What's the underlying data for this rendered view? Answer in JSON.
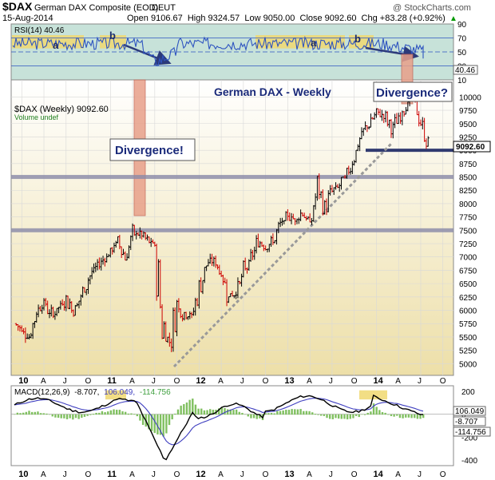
{
  "header": {
    "symbol": "$DAX",
    "name": "German DAX Composite (EOD)",
    "exchange": "DEUT",
    "date": "15-Aug-2014",
    "ohlc_text": "Open 9106.67  High 9324.57  Low 9050.00  Close 9092.60  Chg +83.28 (+0.92%)",
    "chg_arrow": "▲",
    "watermark": "@ StockCharts.com"
  },
  "colors": {
    "rsi_bg": "#c7e2d9",
    "price_bg_top": "#ffffff",
    "price_bg_bottom": "#eddfa8",
    "price_up": "#000000",
    "price_down": "#cc0000",
    "rsi_line": "#2e54c0",
    "hband": "#8a8aa8",
    "annotation_arrow": "#2c3a7a",
    "divergence_bar": "#e8a08a",
    "highlight": "#f0d870",
    "macd_line": "#000000",
    "signal_line": "#4040c0",
    "histogram": "#80c060"
  },
  "rsi_panel": {
    "label": "RSI(14) 40.46",
    "value_tag": "40.46",
    "ticks": [
      "90",
      "70",
      "50",
      "30",
      "10"
    ],
    "annotations": [
      "a",
      "b",
      "a",
      "b"
    ]
  },
  "price_panel": {
    "label": "$DAX (Weekly) 9092.60",
    "volume_label": "Volume undef",
    "title": "German DAX - Weekly",
    "divergence_1": "Divergence!",
    "divergence_2": "Divergence?",
    "last_tag": "9092.60",
    "y_ticks": [
      "10000",
      "9750",
      "9500",
      "9250",
      "9000",
      "8750",
      "8500",
      "8250",
      "8000",
      "7750",
      "7500",
      "7250",
      "7000",
      "6750",
      "6500",
      "6250",
      "6000",
      "5750",
      "5500",
      "5250",
      "5000"
    ]
  },
  "macd_panel": {
    "label_prefix": "MACD(12,26,9)",
    "macd_value": "-8.707,",
    "signal_value": "106.049,",
    "hist_value": "-114.756",
    "ticks": [
      "200",
      "0",
      "-200",
      "-400"
    ],
    "tag_signal": "106.049",
    "tag_macd": "-8.707",
    "tag_hist": "-114.756"
  },
  "x_axis": {
    "labels": [
      "10",
      "A",
      "J",
      "O",
      "11",
      "A",
      "J",
      "O",
      "12",
      "A",
      "J",
      "O",
      "13",
      "A",
      "J",
      "O",
      "14",
      "A",
      "J",
      "O"
    ]
  },
  "chart_data": {
    "type": "line",
    "title": "German DAX - Weekly",
    "series_price": {
      "name": "$DAX (Weekly)",
      "x": [
        "2009-12",
        "2010-01",
        "2010-02",
        "2010-03",
        "2010-04",
        "2010-05",
        "2010-06",
        "2010-07",
        "2010-08",
        "2010-09",
        "2010-10",
        "2010-11",
        "2010-12",
        "2011-01",
        "2011-02",
        "2011-03",
        "2011-04",
        "2011-05",
        "2011-06",
        "2011-07",
        "2011-08",
        "2011-09",
        "2011-10",
        "2011-11",
        "2011-12",
        "2012-01",
        "2012-02",
        "2012-03",
        "2012-04",
        "2012-05",
        "2012-06",
        "2012-07",
        "2012-08",
        "2012-09",
        "2012-10",
        "2012-11",
        "2012-12",
        "2013-01",
        "2013-02",
        "2013-03",
        "2013-04",
        "2013-05",
        "2013-06",
        "2013-07",
        "2013-08",
        "2013-09",
        "2013-10",
        "2013-11",
        "2013-12",
        "2014-01",
        "2014-02",
        "2014-03",
        "2014-04",
        "2014-05",
        "2014-06",
        "2014-07",
        "2014-08"
      ],
      "values": [
        5750,
        5650,
        5500,
        6000,
        6150,
        5900,
        6050,
        6200,
        6000,
        6250,
        6600,
        6800,
        6950,
        7100,
        7300,
        7000,
        7400,
        7450,
        7300,
        7200,
        5800,
        5400,
        6100,
        5900,
        5900,
        6400,
        6850,
        6950,
        6700,
        6250,
        6300,
        6700,
        6950,
        7300,
        7200,
        7300,
        7600,
        7750,
        7700,
        7850,
        7600,
        8300,
        7900,
        8250,
        8350,
        8550,
        8900,
        9300,
        9500,
        9700,
        9650,
        9400,
        9600,
        9900,
        10000,
        9500,
        9092.6
      ]
    },
    "rsi": {
      "name": "RSI(14)",
      "last": 40.46,
      "overbought": 70,
      "oversold": 30,
      "ylim": [
        10,
        90
      ]
    },
    "macd": {
      "params": "12,26,9",
      "macd": -8.707,
      "signal": 106.049,
      "histogram": -114.756,
      "ylim": [
        -450,
        250
      ]
    },
    "support_levels": [
      8500,
      7500,
      9000
    ],
    "ylim": [
      4900,
      10200
    ],
    "grid": true
  }
}
